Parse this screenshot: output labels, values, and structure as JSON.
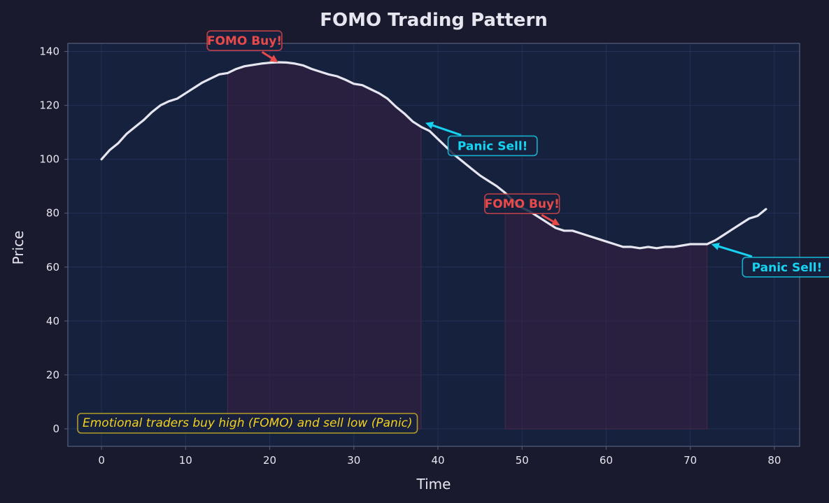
{
  "chart_data": {
    "type": "line",
    "title": "FOMO Trading Pattern",
    "xlabel": "Time",
    "ylabel": "Price",
    "xlim": [
      -4,
      83
    ],
    "ylim": [
      -6.5,
      143
    ],
    "xticks": [
      0,
      10,
      20,
      30,
      40,
      50,
      60,
      70,
      80
    ],
    "yticks": [
      0,
      20,
      40,
      60,
      80,
      100,
      120,
      140
    ],
    "grid": true,
    "series": [
      {
        "x": [
          0,
          1,
          2,
          3,
          4,
          5,
          6,
          7,
          8,
          9,
          10,
          11,
          12,
          13,
          14,
          15,
          16,
          17,
          18,
          19,
          20,
          21,
          22,
          23,
          24,
          25,
          26,
          27,
          28,
          29,
          30,
          31,
          32,
          33,
          34,
          35,
          36,
          37,
          38,
          39,
          40,
          41,
          42,
          43,
          44,
          45,
          46,
          47,
          48,
          49,
          50,
          51,
          52,
          53,
          54,
          55,
          56,
          57,
          58,
          59,
          60,
          61,
          62,
          63,
          64,
          65,
          66,
          67,
          68,
          69,
          70,
          71,
          72,
          73,
          74,
          75,
          76,
          77,
          78,
          79
        ],
        "y": [
          100,
          103.5,
          106,
          109.5,
          112,
          114.5,
          117.5,
          120,
          121.5,
          122.5,
          124.5,
          126.5,
          128.5,
          130,
          131.5,
          132,
          133.5,
          134.5,
          135,
          135.5,
          135.8,
          136,
          135.9,
          135.5,
          134.8,
          133.5,
          132.5,
          131.5,
          130.8,
          129.5,
          128,
          127.5,
          126,
          124.5,
          122.5,
          119.5,
          117,
          114,
          112,
          110.5,
          107.5,
          104.5,
          101.5,
          99,
          96.5,
          94,
          92,
          90,
          87.5,
          84.5,
          82,
          80.5,
          78.5,
          76.5,
          74.5,
          73.5,
          73.5,
          72.5,
          71.5,
          70.5,
          69.5,
          68.5,
          67.5,
          67.5,
          67,
          67.5,
          67,
          67.5,
          67.5,
          68,
          68.5,
          68.5,
          68.5,
          70,
          72,
          74,
          76,
          78,
          79,
          81.5
        ]
      }
    ],
    "shaded_regions": [
      {
        "x_start": 15,
        "x_end": 38
      },
      {
        "x_start": 48,
        "x_end": 72
      }
    ],
    "annotations": [
      {
        "text": "FOMO Buy!",
        "kind": "buy",
        "point": [
          21,
          136
        ],
        "text_pos": [
          17,
          144
        ]
      },
      {
        "text": "Panic Sell!",
        "kind": "sell",
        "point": [
          38.5,
          113.5
        ],
        "text_pos": [
          46.5,
          105
        ]
      },
      {
        "text": "FOMO Buy!",
        "kind": "buy",
        "point": [
          54.5,
          75.5
        ],
        "text_pos": [
          50,
          83.5
        ]
      },
      {
        "text": "Panic Sell!",
        "kind": "sell",
        "point": [
          72.5,
          68.5
        ],
        "text_pos": [
          81.5,
          60
        ]
      }
    ],
    "note": "Emotional traders buy high (FOMO) and sell low (Panic)",
    "colors": {
      "figure_bg": "#1a1a2e",
      "plot_bg": "#16213e",
      "line": "#e6e6f0",
      "buy": "#e84a4a",
      "sell": "#17d3f0",
      "note": "#f2d11c",
      "shade": "#3a2040",
      "grid": "#233057",
      "spine": "#55607a"
    }
  }
}
